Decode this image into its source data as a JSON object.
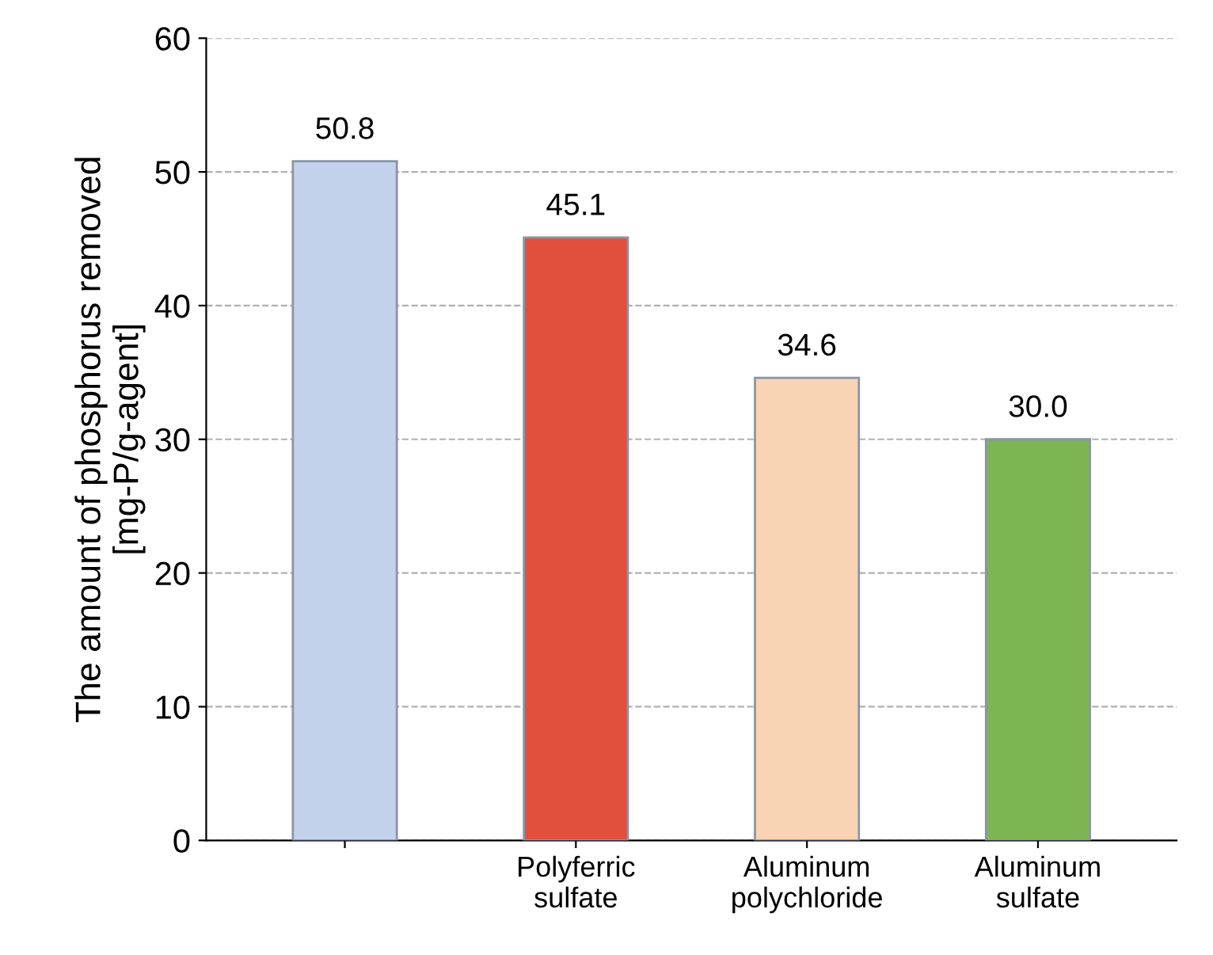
{
  "chart_data": {
    "type": "bar",
    "ylabel": "The amount of phosphorus removed\n[mg-P/g-agent]",
    "categories": [
      null,
      "Polyferric\nsulfate",
      "Aluminum\npolychloride",
      "Aluminum\nsulfate"
    ],
    "values": [
      50.8,
      45.1,
      34.6,
      30.0
    ],
    "value_labels": [
      "50.8",
      "45.1",
      "34.6",
      "30.0"
    ],
    "colors": [
      "#c3d2ea",
      "#e0503c",
      "#f8d3b4",
      "#7db552"
    ],
    "ylim": [
      0,
      60
    ],
    "yticks": [
      0,
      10,
      20,
      30,
      40,
      50,
      60
    ],
    "grid": "y"
  }
}
